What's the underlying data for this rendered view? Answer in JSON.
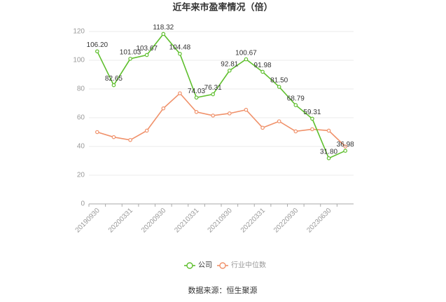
{
  "chart_data": {
    "type": "line",
    "title": "近年来市盈率情况（倍）",
    "categories": [
      "20190930",
      null,
      "20200331",
      null,
      "20200930",
      null,
      "20210331",
      null,
      "20210930",
      null,
      "20220331",
      null,
      "20220930",
      null,
      "20230630",
      null
    ],
    "series": [
      {
        "name": "公司",
        "color": "#5fbf2e",
        "values": [
          106.2,
          82.65,
          101.03,
          103.67,
          118.32,
          104.48,
          74.03,
          76.31,
          92.81,
          100.67,
          91.98,
          81.5,
          68.79,
          59.31,
          31.8,
          36.98
        ],
        "value_labels": [
          "106.20",
          "82.65",
          "101.03",
          "103.67",
          "118.32",
          "104.48",
          "74.03",
          "76.31",
          "92.81",
          "100.67",
          "91.98",
          "81.50",
          "68.79",
          "59.31",
          "31.80",
          "36.98"
        ]
      },
      {
        "name": "行业中位数",
        "color": "#f0916a",
        "values": [
          50,
          46.5,
          44.5,
          51,
          66.5,
          77,
          64,
          61.5,
          63,
          65.5,
          53,
          57.5,
          50.5,
          52,
          51,
          40
        ]
      }
    ],
    "ylim": [
      0,
      120
    ],
    "yticks": [
      0,
      20,
      40,
      60,
      80,
      100,
      120
    ],
    "grid": true,
    "source": "数据来源：恒生聚源"
  }
}
